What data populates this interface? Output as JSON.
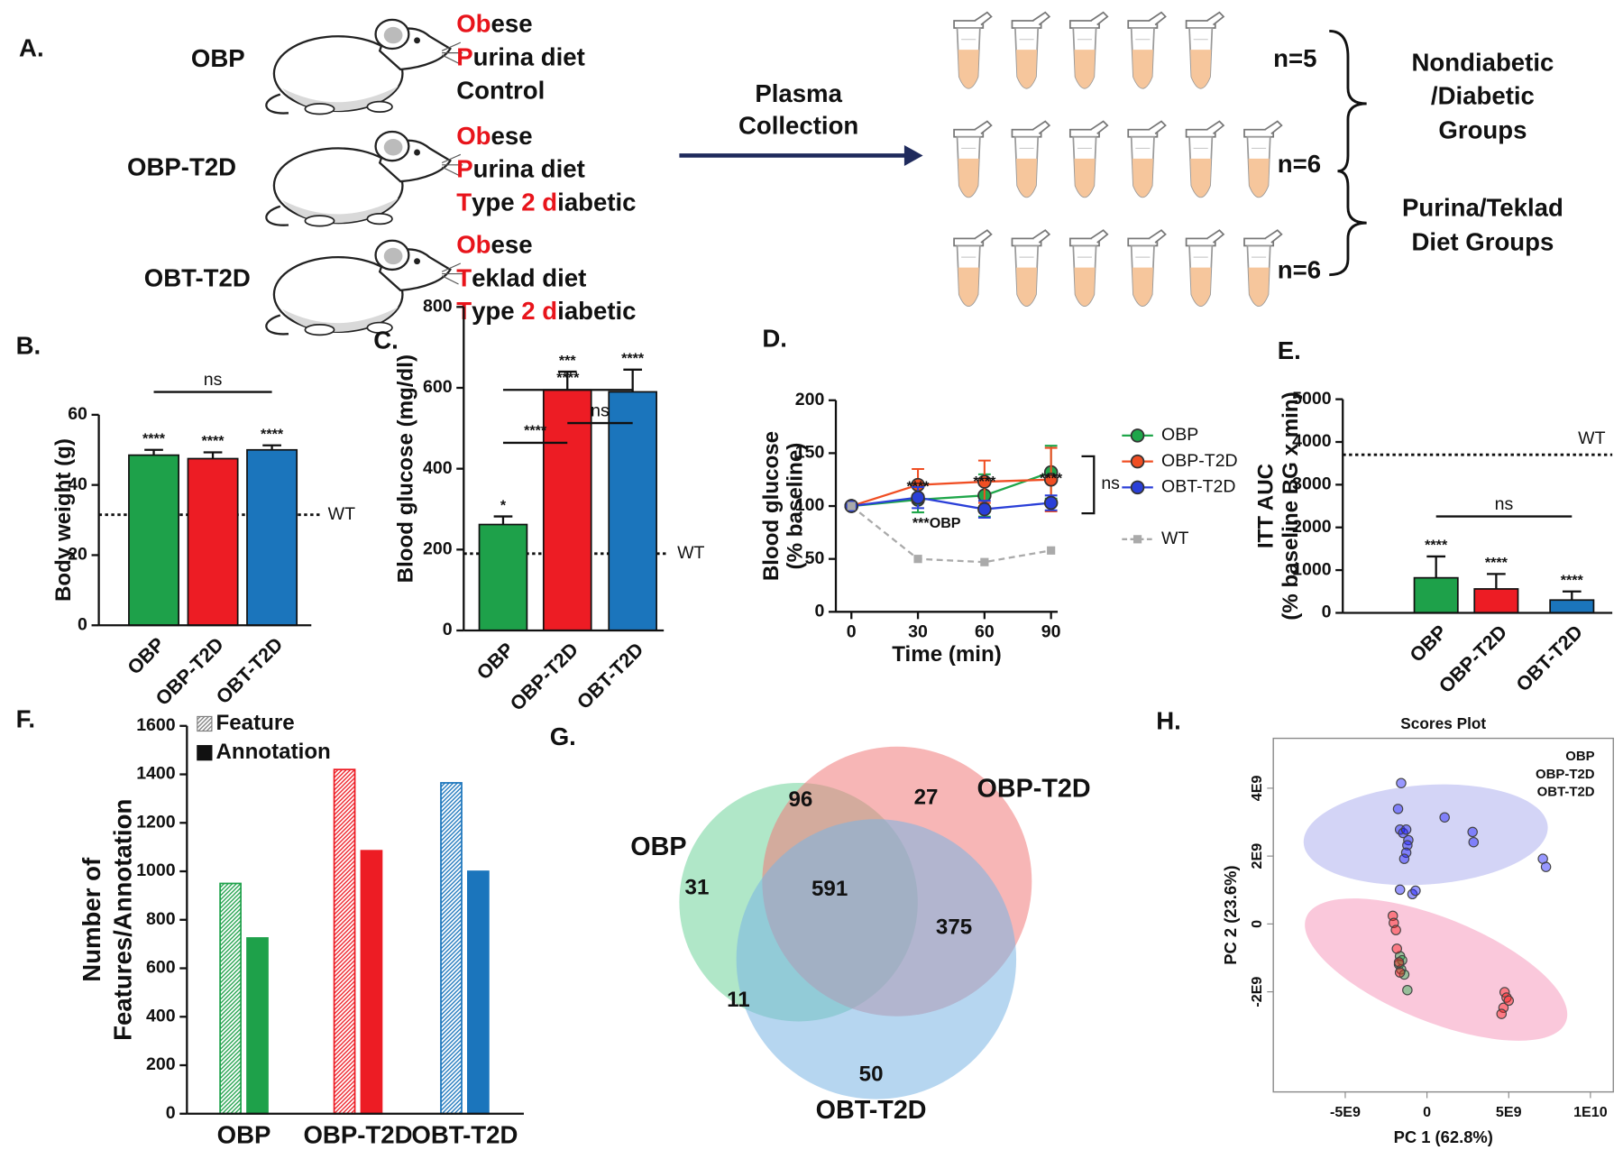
{
  "diagram": {
    "panel": "A.",
    "highlight_color": "#e8141b",
    "groups": [
      {
        "name": "OBP",
        "lines": [
          [
            {
              "text": "Ob",
              "highlight": true
            },
            {
              "text": "ese",
              "highlight": false
            }
          ],
          [
            {
              "text": "P",
              "highlight": true
            },
            {
              "text": "urina diet",
              "highlight": false
            }
          ],
          [
            {
              "text": "Control",
              "highlight": false
            }
          ]
        ]
      },
      {
        "name": "OBP-T2D",
        "lines": [
          [
            {
              "text": "Ob",
              "highlight": true
            },
            {
              "text": "ese",
              "highlight": false
            }
          ],
          [
            {
              "text": "P",
              "highlight": true
            },
            {
              "text": "urina diet",
              "highlight": false
            }
          ],
          [
            {
              "text": "T",
              "highlight": true
            },
            {
              "text": "ype ",
              "highlight": false
            },
            {
              "text": "2",
              "highlight": true
            },
            {
              "text": " ",
              "highlight": false
            },
            {
              "text": "d",
              "highlight": true
            },
            {
              "text": "iabetic",
              "highlight": false
            }
          ]
        ]
      },
      {
        "name": "OBT-T2D",
        "lines": [
          [
            {
              "text": "Ob",
              "highlight": true
            },
            {
              "text": "ese",
              "highlight": false
            }
          ],
          [
            {
              "text": "T",
              "highlight": true
            },
            {
              "text": "eklad diet",
              "highlight": false
            }
          ],
          [
            {
              "text": "T",
              "highlight": true
            },
            {
              "text": "ype ",
              "highlight": false
            },
            {
              "text": "2",
              "highlight": true
            },
            {
              "text": " ",
              "highlight": false
            },
            {
              "text": "d",
              "highlight": true
            },
            {
              "text": "iabetic",
              "highlight": false
            }
          ]
        ]
      }
    ],
    "arrow_label": [
      "Plasma",
      "Collection"
    ],
    "samples": [
      {
        "label": "n=5",
        "n": 5
      },
      {
        "label": "n=6",
        "n": 6
      },
      {
        "label": "n=6",
        "n": 6
      }
    ],
    "groupings": [
      [
        "Nondiabetic",
        "/Diabetic",
        "Groups"
      ],
      [
        "Purina/Teklad",
        "Diet Groups"
      ]
    ]
  },
  "chart_data": [
    {
      "panel": "B.",
      "type": "bar",
      "ylabel": "Body weight (g)",
      "categories": [
        "OBP",
        "OBP-T2D",
        "OBT-T2D"
      ],
      "values": [
        48.5,
        47.5,
        50
      ],
      "errors": [
        1.5,
        1.8,
        1.3
      ],
      "colors": [
        "#1ea14a",
        "#ed1c24",
        "#1b75bc"
      ],
      "ylim": [
        0,
        60
      ],
      "yticks": [
        0,
        20,
        40,
        60
      ],
      "reference": {
        "label": "WT",
        "value": 31.5
      },
      "bar_labels": [
        "****",
        "****",
        "****"
      ],
      "brackets": [
        {
          "from": "OBP",
          "to": "OBT-T2D",
          "label": "ns"
        }
      ]
    },
    {
      "panel": "C.",
      "type": "bar",
      "ylabel": "Blood glucose (mg/dl)",
      "categories": [
        "OBP",
        "OBP-T2D",
        "OBT-T2D"
      ],
      "values": [
        262,
        595,
        590
      ],
      "errors": [
        20,
        45,
        55
      ],
      "colors": [
        "#1ea14a",
        "#ed1c24",
        "#1b75bc"
      ],
      "ylim": [
        0,
        800
      ],
      "yticks": [
        0,
        200,
        400,
        600,
        800
      ],
      "reference": {
        "label": "WT",
        "value": 190
      },
      "bar_labels": [
        "*",
        "***",
        "****"
      ],
      "brackets": [
        {
          "from": "OBP",
          "to": "OBP-T2D",
          "label": "****"
        },
        {
          "from": "OBP-T2D",
          "to": "OBT-T2D",
          "label": "ns"
        },
        {
          "from": "OBP",
          "to": "OBT-T2D",
          "label": "****"
        }
      ]
    },
    {
      "panel": "D.",
      "type": "line",
      "ylabel": [
        "Blood glucose",
        "(% baseline)"
      ],
      "xlabel": "Time (min)",
      "x": [
        0,
        30,
        60,
        90
      ],
      "xlim": [
        -7,
        93
      ],
      "xticks": [
        0,
        30,
        60,
        90
      ],
      "ylim": [
        0,
        200
      ],
      "yticks": [
        0,
        50,
        100,
        150,
        200
      ],
      "series": [
        {
          "name": "OBP",
          "color": "#1fa64a",
          "values": [
            100,
            106,
            110,
            132
          ],
          "errors": [
            0,
            12,
            20,
            25
          ]
        },
        {
          "name": "OBP-T2D",
          "color": "#f04e23",
          "values": [
            100,
            120,
            123,
            125
          ],
          "errors": [
            0,
            15,
            20,
            30
          ]
        },
        {
          "name": "OBT-T2D",
          "color": "#2a3fd8",
          "values": [
            100,
            108,
            97,
            103
          ],
          "errors": [
            0,
            10,
            8,
            7
          ]
        },
        {
          "name": "WT",
          "color": "#aaaaaa",
          "marker": "square",
          "dashed": true,
          "values": [
            100,
            50,
            47,
            58
          ]
        }
      ],
      "annotations": [
        {
          "text": "****",
          "x": 30
        },
        {
          "text": "****",
          "x": 60
        },
        {
          "text": "****",
          "x": 90
        },
        {
          "text": "***OBP",
          "x": 30
        }
      ],
      "bracket_label": "ns"
    },
    {
      "panel": "E.",
      "type": "bar",
      "ylabel": [
        "ITT AUC",
        "(% baseline BG x min)"
      ],
      "categories": [
        "OBP",
        "OBP-T2D",
        "OBT-T2D"
      ],
      "values": [
        820,
        560,
        300
      ],
      "errors": [
        500,
        350,
        200
      ],
      "colors": [
        "#1ea14a",
        "#ed1c24",
        "#1b75bc"
      ],
      "ylim": [
        0,
        5000
      ],
      "yticks": [
        0,
        1000,
        2000,
        3000,
        4000,
        5000
      ],
      "reference": {
        "label": "WT",
        "value": 3700
      },
      "bar_labels": [
        "****",
        "****",
        "****"
      ],
      "brackets": [
        {
          "from": "OBP",
          "to": "OBT-T2D",
          "label": "ns"
        }
      ]
    },
    {
      "panel": "F.",
      "type": "grouped_bar",
      "ylabel": [
        "Number of",
        "Features/Annotation"
      ],
      "categories": [
        "OBP",
        "OBP-T2D",
        "OBT-T2D"
      ],
      "colors": [
        "#1ea14a",
        "#ed1c24",
        "#1b75bc"
      ],
      "series": [
        {
          "name": "Feature",
          "pattern": "hatched",
          "color": "#7f7f7f",
          "values": [
            950,
            1420,
            1365
          ]
        },
        {
          "name": "Annotation",
          "pattern": "solid",
          "color": "#111111",
          "values": [
            725,
            1085,
            1000
          ]
        }
      ],
      "ylim": [
        0,
        1600
      ],
      "yticks": [
        0,
        200,
        400,
        600,
        800,
        1000,
        1200,
        1400,
        1600
      ]
    },
    {
      "panel": "G.",
      "type": "venn",
      "sets": [
        {
          "name": "OBP",
          "color": "#6fd49a"
        },
        {
          "name": "OBP-T2D",
          "color": "#f07a7a"
        },
        {
          "name": "OBT-T2D",
          "color": "#7ab4e4"
        }
      ],
      "regions": [
        {
          "sets": [
            "OBP"
          ],
          "value": 31
        },
        {
          "sets": [
            "OBP",
            "OBP-T2D"
          ],
          "value": 96
        },
        {
          "sets": [
            "OBP-T2D"
          ],
          "value": 27
        },
        {
          "sets": [
            "OBP",
            "OBP-T2D",
            "OBT-T2D"
          ],
          "value": 591
        },
        {
          "sets": [
            "OBP-T2D",
            "OBT-T2D"
          ],
          "value": 375
        },
        {
          "sets": [
            "OBP",
            "OBT-T2D"
          ],
          "value": 11
        },
        {
          "sets": [
            "OBT-T2D"
          ],
          "value": 50
        }
      ]
    },
    {
      "panel": "H.",
      "type": "scatter",
      "title": "Scores Plot",
      "xlabel": "PC 1 (62.8%)",
      "ylabel": "PC 2 (23.6%)",
      "xlim": [
        -9400000000.0,
        11400000000.0
      ],
      "ylim": [
        -4950000000.0,
        5470000000.0
      ],
      "xticks": [
        {
          "value": -5000000000.0,
          "label": "-5E9"
        },
        0,
        {
          "value": 5000000000.0,
          "label": "5E9"
        },
        {
          "value": 10000000000.0,
          "label": "1E10"
        }
      ],
      "yticks": [
        {
          "value": -2000000000.0,
          "label": "-2E9"
        },
        0,
        {
          "value": 2000000000.0,
          "label": "2E9"
        },
        {
          "value": 4000000000.0,
          "label": "4E9"
        }
      ],
      "legend": "upper right",
      "series": [
        {
          "name": "OBP",
          "color": "#22b14c",
          "x": [
            -1650000000.0,
            -1520000000.0,
            -1710000000.0,
            -1580000000.0,
            -1390000000.0,
            -1200000000.0
          ],
          "values": [
            -950000000.0,
            -1070000000.0,
            -1190000000.0,
            -1340000000.0,
            -1490000000.0,
            -1950000000.0
          ]
        },
        {
          "name": "OBP-T2D",
          "color": "#ff1a1a",
          "x": [
            -2090000000.0,
            -2030000000.0,
            -1900000000.0,
            -1840000000.0,
            -1710000000.0,
            -1650000000.0,
            4750000000.0,
            4870000000.0,
            5000000000.0,
            4680000000.0,
            4560000000.0
          ],
          "values": [
            240000000.0,
            30000000.0,
            -180000000.0,
            -730000000.0,
            -1130000000.0,
            -1430000000.0,
            -2010000000.0,
            -2170000000.0,
            -2260000000.0,
            -2470000000.0,
            -2650000000.0
          ]
        },
        {
          "name": "OBT-T2D",
          "color": "#1a1aff",
          "x": [
            -1580000000.0,
            -1770000000.0,
            -1650000000.0,
            -1460000000.0,
            -1270000000.0,
            -1140000000.0,
            -1200000000.0,
            -1270000000.0,
            -1390000000.0,
            -1650000000.0,
            -890000000.0,
            -700000000.0,
            1080000000.0,
            2790000000.0,
            2850000000.0,
            7090000000.0,
            7280000000.0
          ],
          "values": [
            4150000000.0,
            3390000000.0,
            2780000000.0,
            2680000000.0,
            2780000000.0,
            2470000000.0,
            2320000000.0,
            2100000000.0,
            1920000000.0,
            1010000000.0,
            880000000.0,
            980000000.0,
            3140000000.0,
            2710000000.0,
            2410000000.0,
            1920000000.0,
            1680000000.0
          ]
        }
      ]
    }
  ]
}
